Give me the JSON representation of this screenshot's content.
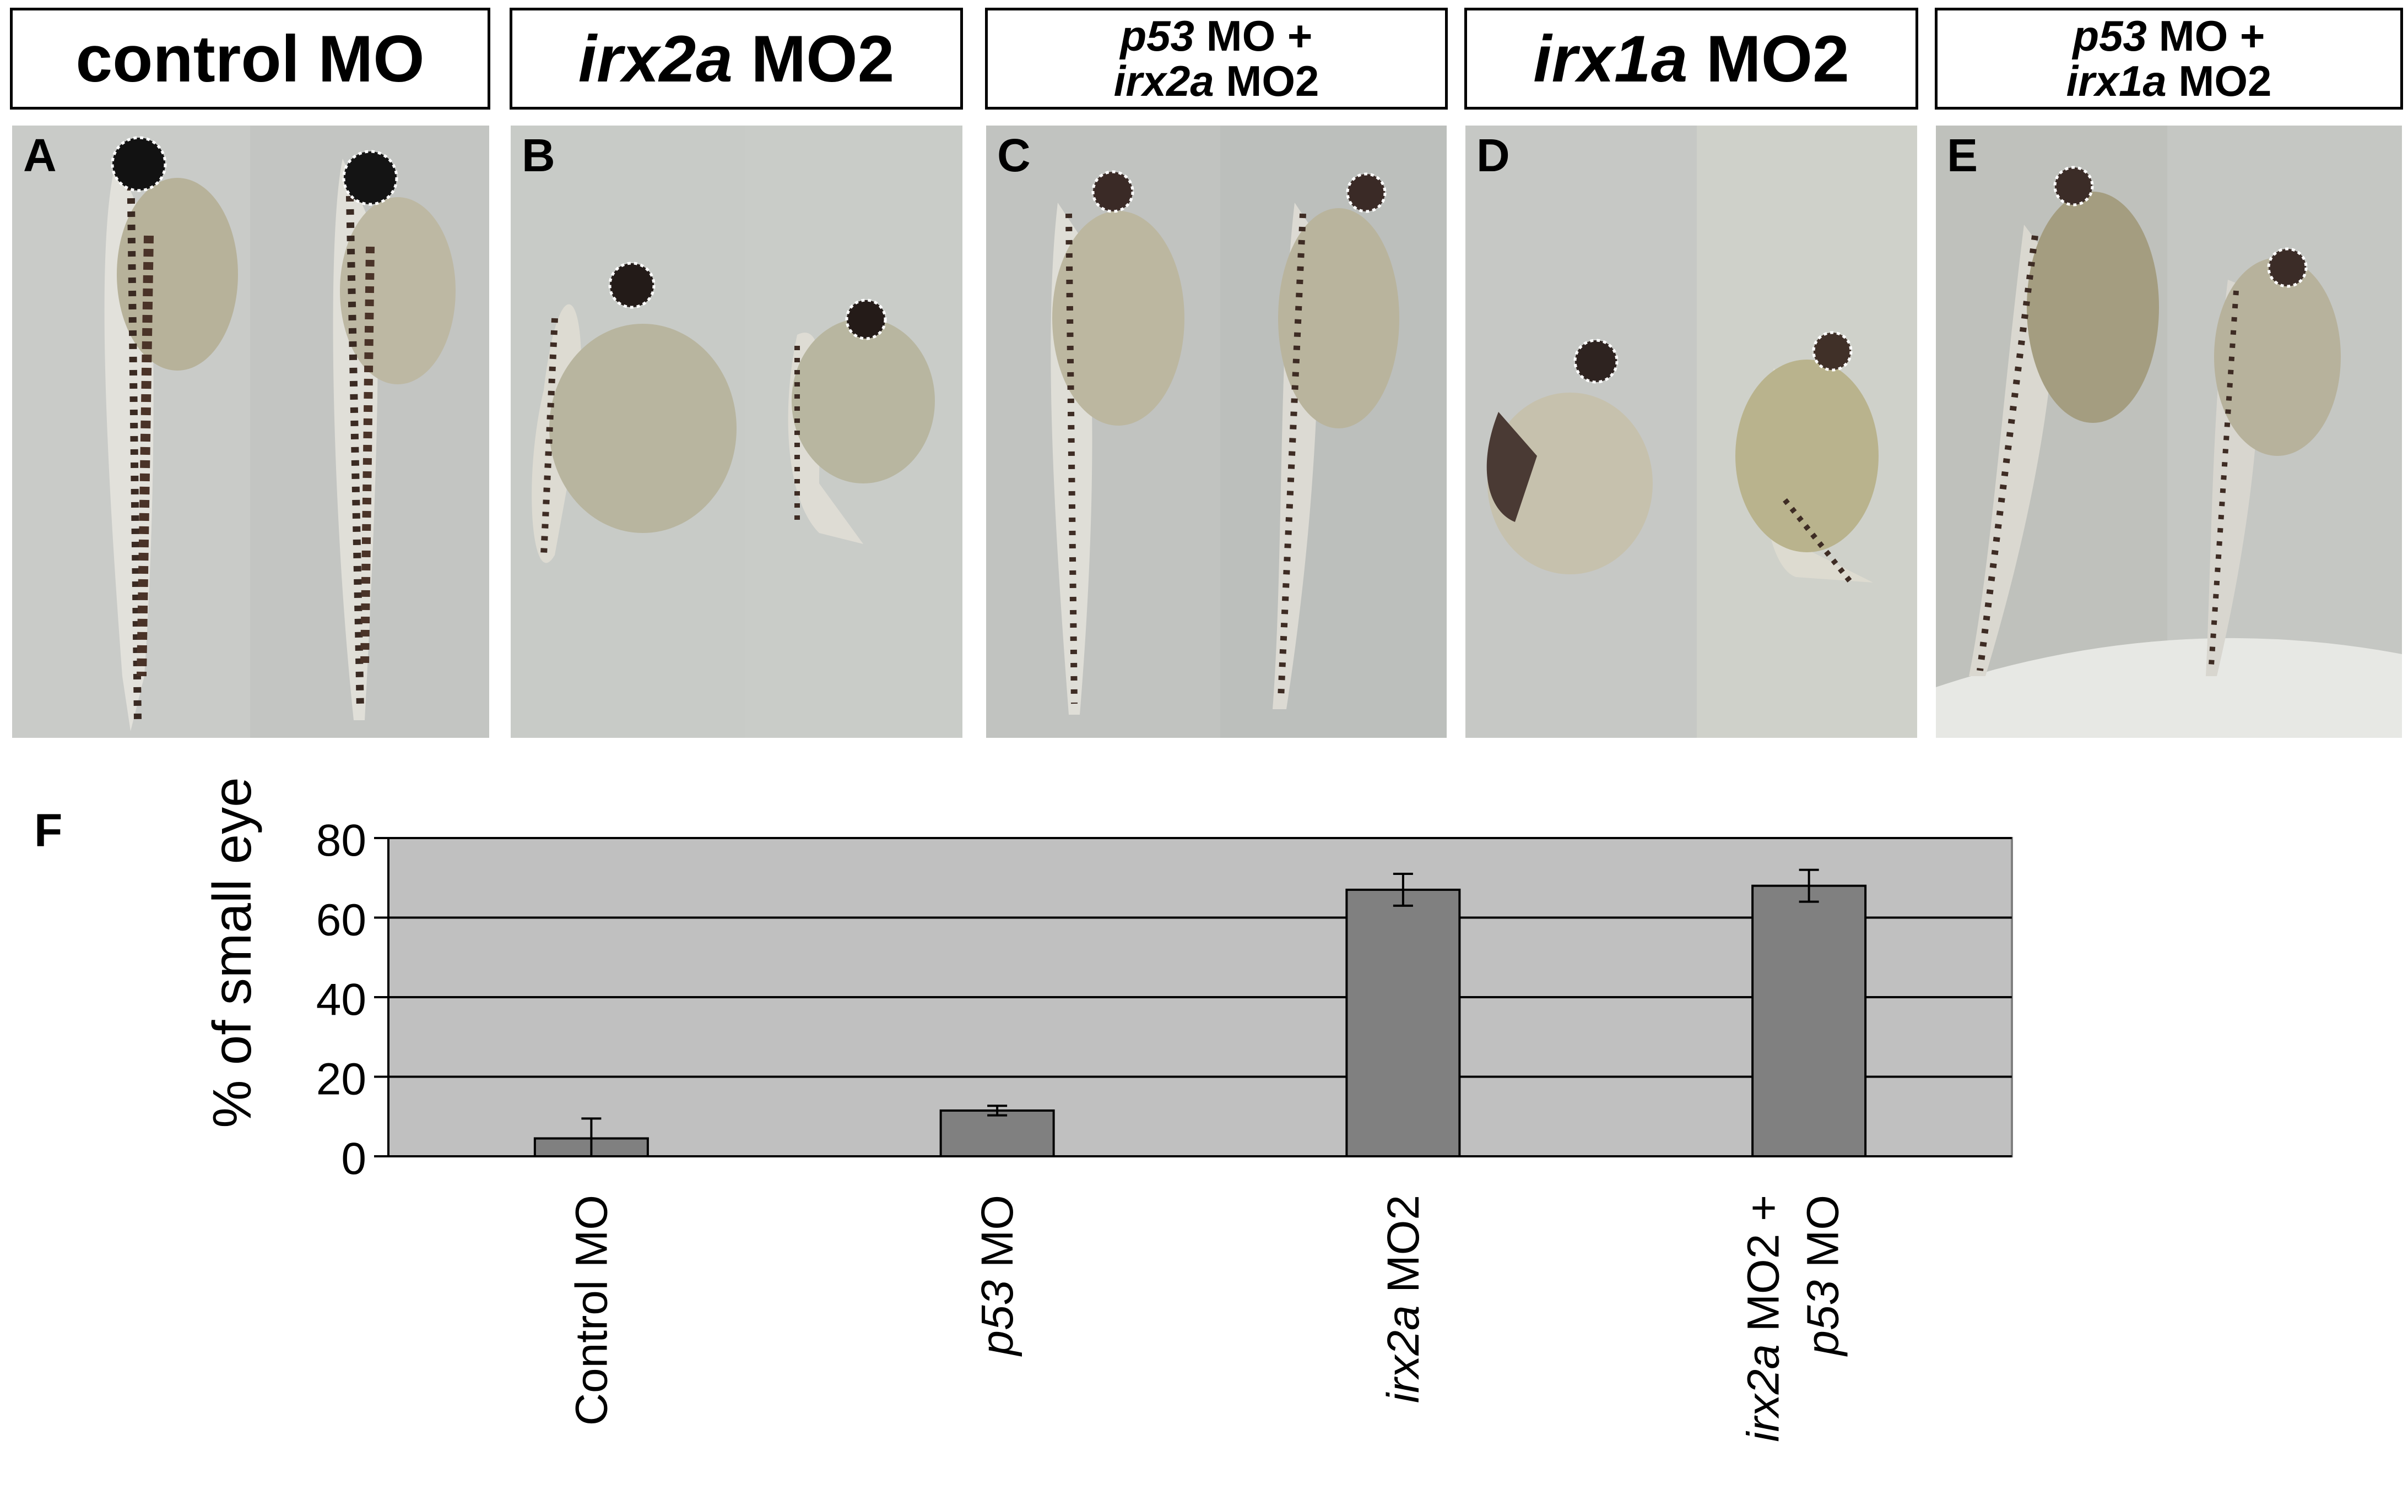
{
  "panels": [
    {
      "letter": "A",
      "title_parts": [
        {
          "text": "control MO",
          "italic": false
        }
      ],
      "size": "big"
    },
    {
      "letter": "B",
      "title_parts": [
        {
          "text": "irx2a",
          "italic": true
        },
        {
          "text": " MO2",
          "italic": false
        }
      ],
      "size": "big"
    },
    {
      "letter": "C",
      "title_lines": [
        [
          {
            "text": "p53",
            "italic": true
          },
          {
            "text": " MO +",
            "italic": false
          }
        ],
        [
          {
            "text": "irx2a",
            "italic": true
          },
          {
            "text": " MO2",
            "italic": false
          }
        ]
      ],
      "size": "small"
    },
    {
      "letter": "D",
      "title_parts": [
        {
          "text": "irx1a",
          "italic": true
        },
        {
          "text": " MO2",
          "italic": false
        }
      ],
      "size": "big"
    },
    {
      "letter": "E",
      "title_lines": [
        [
          {
            "text": "p53",
            "italic": true
          },
          {
            "text": " MO +",
            "italic": false
          }
        ],
        [
          {
            "text": "irx1a",
            "italic": true
          },
          {
            "text": " MO2",
            "italic": false
          }
        ]
      ],
      "size": "small"
    }
  ],
  "figure_letter": "F",
  "chart_data": {
    "type": "bar",
    "ylabel": "% of small eye",
    "ylim": [
      0,
      80
    ],
    "yticks": [
      0,
      20,
      40,
      60,
      80
    ],
    "grid": true,
    "categories": [
      {
        "lines": [
          [
            {
              "text": "Control MO",
              "italic": false
            }
          ]
        ]
      },
      {
        "lines": [
          [
            {
              "text": "p53",
              "italic": true
            },
            {
              "text": " MO",
              "italic": false
            }
          ]
        ]
      },
      {
        "lines": [
          [
            {
              "text": "irx2a",
              "italic": true
            },
            {
              "text": " MO2",
              "italic": false
            }
          ]
        ]
      },
      {
        "lines": [
          [
            {
              "text": "irx2a",
              "italic": true
            },
            {
              "text": " MO2 +",
              "italic": false
            }
          ],
          [
            {
              "text": "p53",
              "italic": true
            },
            {
              "text": " MO",
              "italic": false
            }
          ]
        ]
      }
    ],
    "values": [
      4.5,
      11.5,
      67,
      68
    ],
    "errors": [
      5,
      1.2,
      4,
      4
    ],
    "colors": {
      "bar": "#808080",
      "plot_bg": "#c0c0c0",
      "grid": "#000000"
    }
  }
}
